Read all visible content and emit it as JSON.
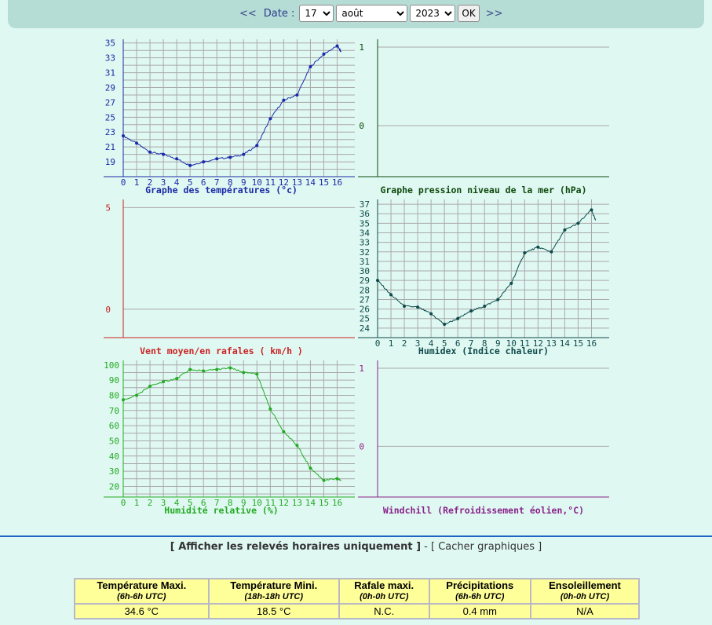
{
  "date_nav": {
    "prev": "<<",
    "label": "Date :",
    "day": "17",
    "month": "août",
    "year": "2023",
    "ok": "OK",
    "next": ">>"
  },
  "links": {
    "hourly": "[ Afficher les relevés horaires uniquement ]",
    "sep": "-",
    "hide": "[ Cacher graphiques ]"
  },
  "summary": {
    "headers": [
      {
        "title": "Température Maxi.",
        "sub": "(6h-6h UTC)"
      },
      {
        "title": "Température Mini.",
        "sub": "(18h-18h UTC)"
      },
      {
        "title": "Rafale maxi.",
        "sub": "(0h-0h UTC)"
      },
      {
        "title": "Précipitations",
        "sub": "(6h-6h UTC)"
      },
      {
        "title": "Ensoleillement",
        "sub": "(0h-0h UTC)"
      }
    ],
    "values": [
      "34.6 °C",
      "18.5 °C",
      "N.C.",
      "0.4 mm",
      "N/A"
    ]
  },
  "chart_data": [
    {
      "type": "line",
      "title": "Graphe des températures (°c)",
      "color": "#1a2aa8",
      "xticks": [
        "0",
        "1",
        "2",
        "3",
        "4",
        "5",
        "6",
        "7",
        "8",
        "9",
        "10",
        "11",
        "12",
        "13",
        "14",
        "15",
        "16"
      ],
      "yticks": [
        "19",
        "21",
        "23",
        "25",
        "27",
        "29",
        "31",
        "33",
        "35"
      ],
      "ylim": [
        17,
        35.5
      ],
      "xlim": [
        0,
        16.5
      ],
      "x": [
        0,
        1,
        2,
        3,
        4,
        5,
        6,
        7,
        8,
        9,
        10,
        11,
        12,
        13,
        14,
        15,
        16,
        16.3
      ],
      "y": [
        22.5,
        21.5,
        20.3,
        20,
        19.4,
        18.5,
        19,
        19.4,
        19.6,
        20,
        21.2,
        24.8,
        27.3,
        28,
        31.8,
        33.5,
        34.6,
        33.8
      ]
    },
    {
      "type": "line",
      "title": "Graphe pression niveau de la mer (hPa)",
      "color": "#0d4a0d",
      "xticks": [],
      "yticks": [
        "0",
        "1"
      ],
      "ylim": [
        -0.65,
        1.1
      ],
      "xlim": [
        0,
        16.5
      ],
      "x": [],
      "y": []
    },
    {
      "type": "line",
      "title": "Vent moyen/en rafales ( km/h )",
      "color": "#cc2222",
      "xticks": [],
      "yticks": [
        "0",
        "5"
      ],
      "ylim": [
        -1.4,
        5.4
      ],
      "xlim": [
        0,
        16.5
      ],
      "x": [],
      "y": []
    },
    {
      "type": "line",
      "title": "Humidex (Indice chaleur)",
      "color": "#0d4a4a",
      "xticks": [
        "0",
        "1",
        "2",
        "3",
        "4",
        "5",
        "6",
        "7",
        "8",
        "9",
        "10",
        "11",
        "12",
        "13",
        "14",
        "15",
        "16"
      ],
      "yticks": [
        "24",
        "25",
        "26",
        "27",
        "28",
        "29",
        "30",
        "31",
        "32",
        "33",
        "34",
        "35",
        "36",
        "37"
      ],
      "ylim": [
        23,
        37.5
      ],
      "xlim": [
        0,
        16.5
      ],
      "x": [
        0,
        1,
        2,
        3,
        4,
        5,
        6,
        7,
        8,
        9,
        10,
        11,
        12,
        13,
        14,
        15,
        16,
        16.3
      ],
      "y": [
        29,
        27.5,
        26.3,
        26.2,
        25.5,
        24.4,
        25,
        25.8,
        26.3,
        27,
        28.7,
        31.9,
        32.5,
        32,
        34.3,
        35,
        36.4,
        35.3
      ]
    },
    {
      "type": "line",
      "title": "Humidité relative (%)",
      "color": "#22aa22",
      "xticks": [
        "0",
        "1",
        "2",
        "3",
        "4",
        "5",
        "6",
        "7",
        "8",
        "9",
        "10",
        "11",
        "12",
        "13",
        "14",
        "15",
        "16"
      ],
      "yticks": [
        "20",
        "30",
        "40",
        "50",
        "60",
        "70",
        "80",
        "90",
        "100"
      ],
      "ylim": [
        13,
        103
      ],
      "xlim": [
        0,
        16.5
      ],
      "x": [
        0,
        1,
        2,
        3,
        4,
        5,
        6,
        7,
        8,
        9,
        10,
        11,
        12,
        13,
        14,
        15,
        16,
        16.3
      ],
      "y": [
        77,
        80,
        86,
        89,
        91,
        97,
        96,
        97,
        98,
        95,
        94,
        71,
        56,
        47,
        32,
        24,
        25,
        24
      ]
    },
    {
      "type": "line",
      "title": "Windchill (Refroidissement éolien,°C)",
      "color": "#882288",
      "xticks": [],
      "yticks": [
        "0",
        "1"
      ],
      "ylim": [
        -0.65,
        1.1
      ],
      "xlim": [
        0,
        16.5
      ],
      "x": [],
      "y": []
    }
  ]
}
